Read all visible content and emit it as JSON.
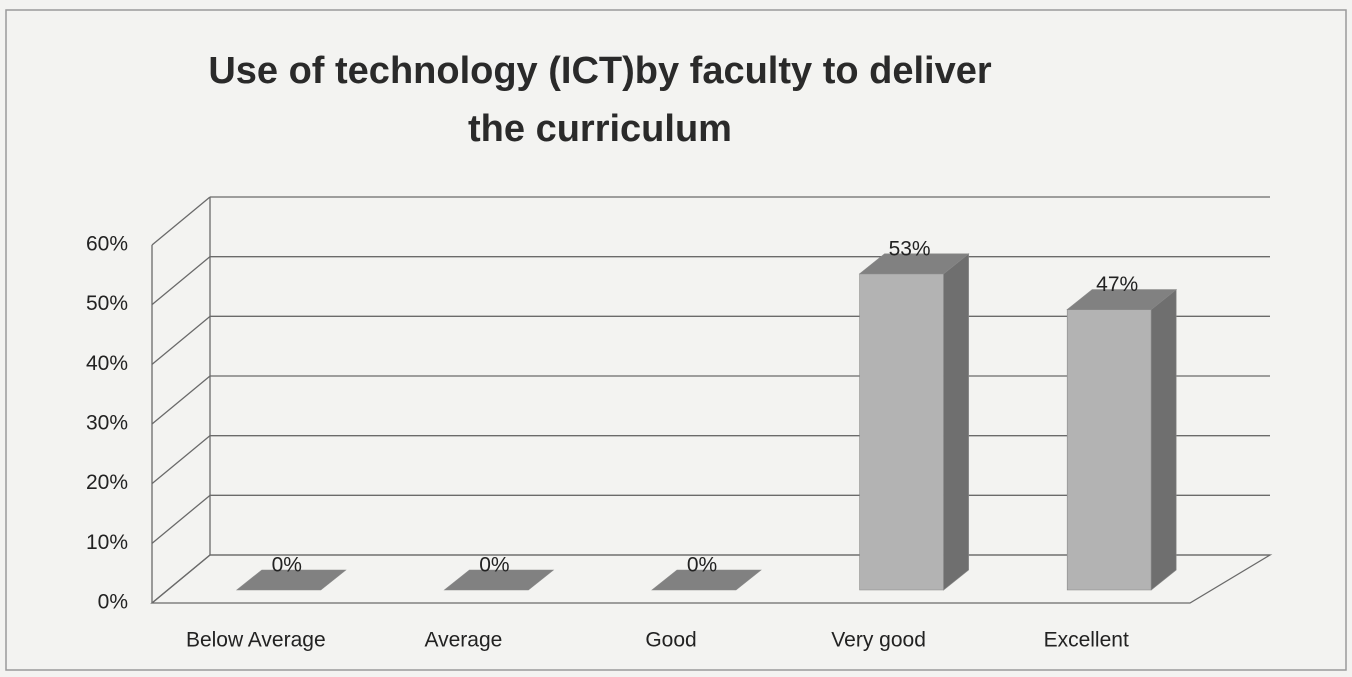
{
  "chart_data": {
    "type": "bar3d",
    "title": "Use of technology (ICT)by faculty to deliver the curriculum",
    "categories": [
      "Below Average",
      "Average",
      "Good",
      "Very good",
      "Excellent"
    ],
    "values": [
      0,
      0,
      0,
      53,
      47
    ],
    "value_labels": [
      "0%",
      "0%",
      "0%",
      "53%",
      "47%"
    ],
    "color": "#b3b3b3",
    "ylim": [
      0,
      60
    ],
    "yticks": [
      {
        "value": 0,
        "label": "0%"
      },
      {
        "value": 10,
        "label": "10%"
      },
      {
        "value": 20,
        "label": "20%"
      },
      {
        "value": 30,
        "label": "30%"
      },
      {
        "value": 40,
        "label": "40%"
      },
      {
        "value": 50,
        "label": "50%"
      },
      {
        "value": 60,
        "label": "60%"
      }
    ],
    "grid": true
  }
}
